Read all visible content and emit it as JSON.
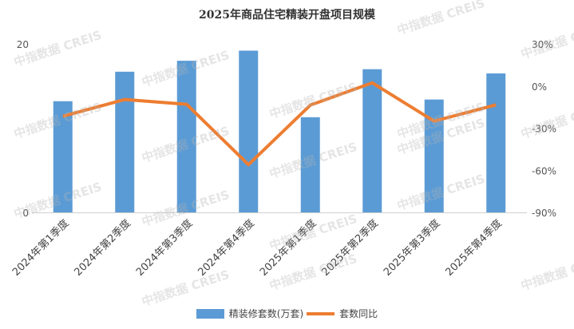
{
  "chart_data": {
    "type": "bar+line",
    "title": "2025年商品住宅精装开盘项目规模",
    "categories": [
      "2024年第1季度",
      "2024年第2季度",
      "2024年第3季度",
      "2024年第4季度",
      "2025年第1季度",
      "2025年第2季度",
      "2025年第3季度",
      "2025年第4季度"
    ],
    "series": [
      {
        "name": "精装修套数(万套)",
        "type": "bar",
        "axis": "left",
        "color": "#5b9bd5",
        "values": [
          13.2,
          16.7,
          18.0,
          19.2,
          11.3,
          17.0,
          13.4,
          16.5
        ]
      },
      {
        "name": "套数同比",
        "type": "line",
        "axis": "right",
        "color": "#ed7d31",
        "values": [
          -21.5,
          -9.6,
          -13.0,
          -56.0,
          -13.6,
          2.3,
          -25.0,
          -13.4
        ]
      }
    ],
    "left_axis": {
      "ylim": [
        0,
        20
      ],
      "ticks": [
        "0",
        "20"
      ]
    },
    "right_axis": {
      "ylim": [
        -90,
        30
      ],
      "ticks": [
        "30%",
        "0%",
        "-30%",
        "-60%",
        "-90%"
      ],
      "tick_values": [
        30,
        0,
        -30,
        -60,
        -90
      ]
    },
    "grid": false,
    "legend": "bottom"
  },
  "watermark": "中指数据 CREIS"
}
